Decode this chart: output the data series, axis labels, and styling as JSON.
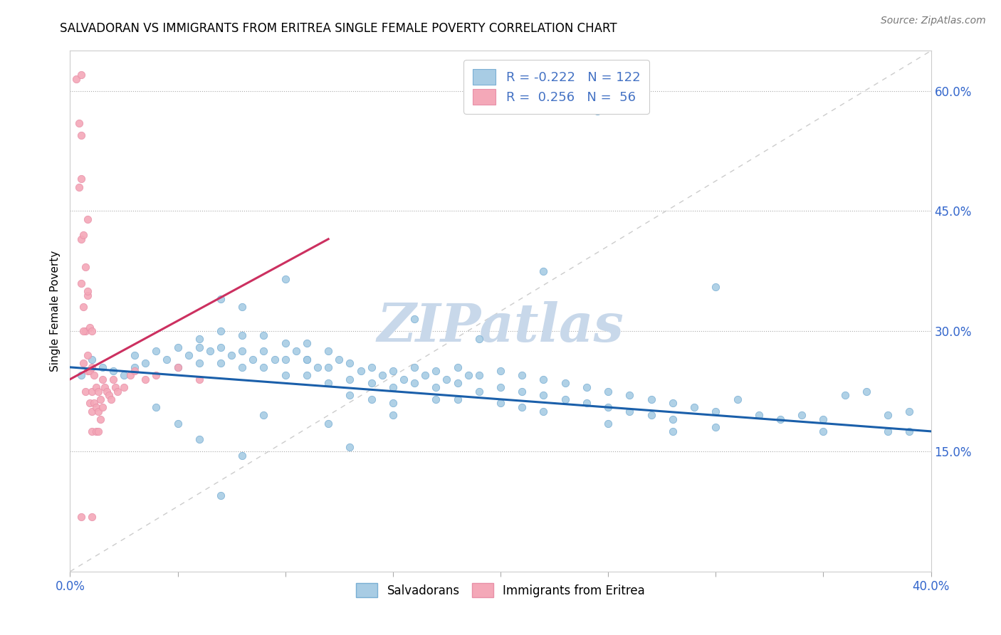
{
  "title": "SALVADORAN VS IMMIGRANTS FROM ERITREA SINGLE FEMALE POVERTY CORRELATION CHART",
  "source": "Source: ZipAtlas.com",
  "ylabel": "Single Female Poverty",
  "xlim": [
    0.0,
    0.4
  ],
  "ylim": [
    0.0,
    0.65
  ],
  "right_y_ticks": [
    0.15,
    0.3,
    0.45,
    0.6
  ],
  "right_y_tick_labels": [
    "15.0%",
    "30.0%",
    "45.0%",
    "60.0%"
  ],
  "blue_color": "#a8cce4",
  "pink_color": "#f4a8b8",
  "blue_edge": "#7aafd4",
  "pink_edge": "#e890a8",
  "trend_blue": "#1a5faa",
  "trend_pink": "#cc3060",
  "diag_color": "#cccccc",
  "R_blue": -0.222,
  "N_blue": 122,
  "R_pink": 0.256,
  "N_pink": 56,
  "legend_color": "#4472c4",
  "watermark": "ZIPatlas",
  "watermark_color": "#c8d8ea",
  "blue_x": [
    0.005,
    0.01,
    0.015,
    0.02,
    0.025,
    0.03,
    0.035,
    0.04,
    0.045,
    0.05,
    0.05,
    0.055,
    0.06,
    0.06,
    0.065,
    0.07,
    0.07,
    0.07,
    0.075,
    0.08,
    0.08,
    0.08,
    0.085,
    0.09,
    0.09,
    0.09,
    0.095,
    0.1,
    0.1,
    0.1,
    0.105,
    0.11,
    0.11,
    0.11,
    0.115,
    0.12,
    0.12,
    0.12,
    0.125,
    0.13,
    0.13,
    0.13,
    0.135,
    0.14,
    0.14,
    0.14,
    0.145,
    0.15,
    0.15,
    0.15,
    0.155,
    0.16,
    0.16,
    0.165,
    0.17,
    0.17,
    0.175,
    0.18,
    0.18,
    0.18,
    0.185,
    0.19,
    0.19,
    0.2,
    0.2,
    0.2,
    0.21,
    0.21,
    0.21,
    0.22,
    0.22,
    0.22,
    0.23,
    0.23,
    0.24,
    0.24,
    0.25,
    0.25,
    0.25,
    0.26,
    0.26,
    0.27,
    0.27,
    0.28,
    0.28,
    0.29,
    0.3,
    0.3,
    0.31,
    0.32,
    0.33,
    0.34,
    0.35,
    0.35,
    0.36,
    0.37,
    0.38,
    0.38,
    0.39,
    0.39,
    0.245,
    0.3,
    0.16,
    0.19,
    0.22,
    0.17,
    0.28,
    0.15,
    0.12,
    0.09,
    0.06,
    0.07,
    0.08,
    0.1,
    0.11,
    0.13,
    0.08,
    0.06,
    0.05,
    0.04,
    0.07,
    0.03
  ],
  "blue_y": [
    0.245,
    0.265,
    0.255,
    0.25,
    0.245,
    0.27,
    0.26,
    0.275,
    0.265,
    0.28,
    0.255,
    0.27,
    0.29,
    0.26,
    0.275,
    0.3,
    0.28,
    0.26,
    0.27,
    0.295,
    0.275,
    0.255,
    0.265,
    0.295,
    0.275,
    0.255,
    0.265,
    0.285,
    0.265,
    0.245,
    0.275,
    0.285,
    0.265,
    0.245,
    0.255,
    0.275,
    0.255,
    0.235,
    0.265,
    0.26,
    0.24,
    0.22,
    0.25,
    0.255,
    0.235,
    0.215,
    0.245,
    0.25,
    0.23,
    0.21,
    0.24,
    0.255,
    0.235,
    0.245,
    0.25,
    0.23,
    0.24,
    0.255,
    0.235,
    0.215,
    0.245,
    0.245,
    0.225,
    0.25,
    0.23,
    0.21,
    0.245,
    0.225,
    0.205,
    0.24,
    0.22,
    0.2,
    0.235,
    0.215,
    0.23,
    0.21,
    0.225,
    0.205,
    0.185,
    0.22,
    0.2,
    0.215,
    0.195,
    0.21,
    0.19,
    0.205,
    0.2,
    0.18,
    0.215,
    0.195,
    0.19,
    0.195,
    0.19,
    0.175,
    0.22,
    0.225,
    0.195,
    0.175,
    0.2,
    0.175,
    0.575,
    0.355,
    0.315,
    0.29,
    0.375,
    0.215,
    0.175,
    0.195,
    0.185,
    0.195,
    0.28,
    0.34,
    0.33,
    0.365,
    0.265,
    0.155,
    0.145,
    0.165,
    0.185,
    0.205,
    0.095,
    0.255
  ],
  "pink_x": [
    0.003,
    0.004,
    0.004,
    0.005,
    0.005,
    0.005,
    0.005,
    0.005,
    0.006,
    0.006,
    0.006,
    0.007,
    0.007,
    0.007,
    0.008,
    0.008,
    0.008,
    0.008,
    0.009,
    0.009,
    0.009,
    0.01,
    0.01,
    0.01,
    0.01,
    0.01,
    0.011,
    0.011,
    0.012,
    0.012,
    0.012,
    0.013,
    0.013,
    0.013,
    0.014,
    0.014,
    0.015,
    0.015,
    0.016,
    0.017,
    0.018,
    0.019,
    0.02,
    0.021,
    0.022,
    0.025,
    0.028,
    0.03,
    0.035,
    0.04,
    0.05,
    0.06,
    0.008,
    0.006,
    0.005,
    0.01
  ],
  "pink_y": [
    0.615,
    0.56,
    0.48,
    0.62,
    0.545,
    0.49,
    0.415,
    0.36,
    0.42,
    0.33,
    0.26,
    0.38,
    0.3,
    0.225,
    0.345,
    0.27,
    0.35,
    0.25,
    0.305,
    0.25,
    0.21,
    0.3,
    0.255,
    0.225,
    0.2,
    0.175,
    0.245,
    0.21,
    0.23,
    0.205,
    0.175,
    0.225,
    0.2,
    0.175,
    0.215,
    0.19,
    0.24,
    0.205,
    0.23,
    0.225,
    0.22,
    0.215,
    0.24,
    0.23,
    0.225,
    0.23,
    0.245,
    0.25,
    0.24,
    0.245,
    0.255,
    0.24,
    0.44,
    0.3,
    0.068,
    0.068
  ],
  "blue_trend_x0": 0.0,
  "blue_trend_y0": 0.255,
  "blue_trend_x1": 0.4,
  "blue_trend_y1": 0.175,
  "pink_trend_x0": 0.0,
  "pink_trend_y0": 0.24,
  "pink_trend_x1": 0.12,
  "pink_trend_y1": 0.415
}
